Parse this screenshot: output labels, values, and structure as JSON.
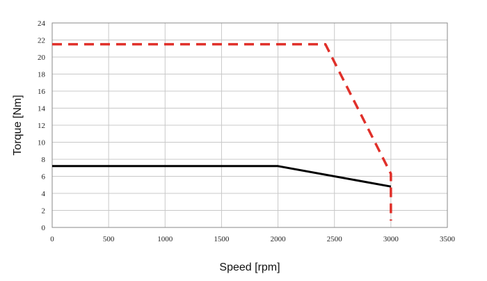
{
  "chart_data": {
    "type": "line",
    "title": "",
    "xlabel": "Speed [rpm]",
    "ylabel": "Torque [Nm]",
    "xlim": [
      0,
      3500
    ],
    "ylim": [
      0,
      24
    ],
    "x_ticks": [
      0,
      500,
      1000,
      1500,
      2000,
      2500,
      3000,
      3500
    ],
    "y_ticks": [
      0,
      2,
      4,
      6,
      8,
      10,
      12,
      14,
      16,
      18,
      20,
      22,
      24
    ],
    "x_tick_labels": [
      "0",
      "500",
      "1000",
      "1500",
      "2000",
      "2500",
      "3000",
      "3500"
    ],
    "y_tick_labels": [
      "0",
      "2",
      "4",
      "6",
      "8",
      "10",
      "12",
      "14",
      "16",
      "18",
      "20",
      "22",
      "24"
    ],
    "grid": true,
    "legend": "none",
    "series": [
      {
        "style": "dashed",
        "color": "#e0302a",
        "points": [
          [
            0,
            21.5
          ],
          [
            2420,
            21.5
          ],
          [
            3000,
            6.3
          ],
          [
            3000,
            0.8
          ]
        ]
      },
      {
        "style": "solid",
        "color": "#000000",
        "points": [
          [
            0,
            7.2
          ],
          [
            2000,
            7.2
          ],
          [
            3000,
            4.8
          ]
        ]
      }
    ]
  }
}
